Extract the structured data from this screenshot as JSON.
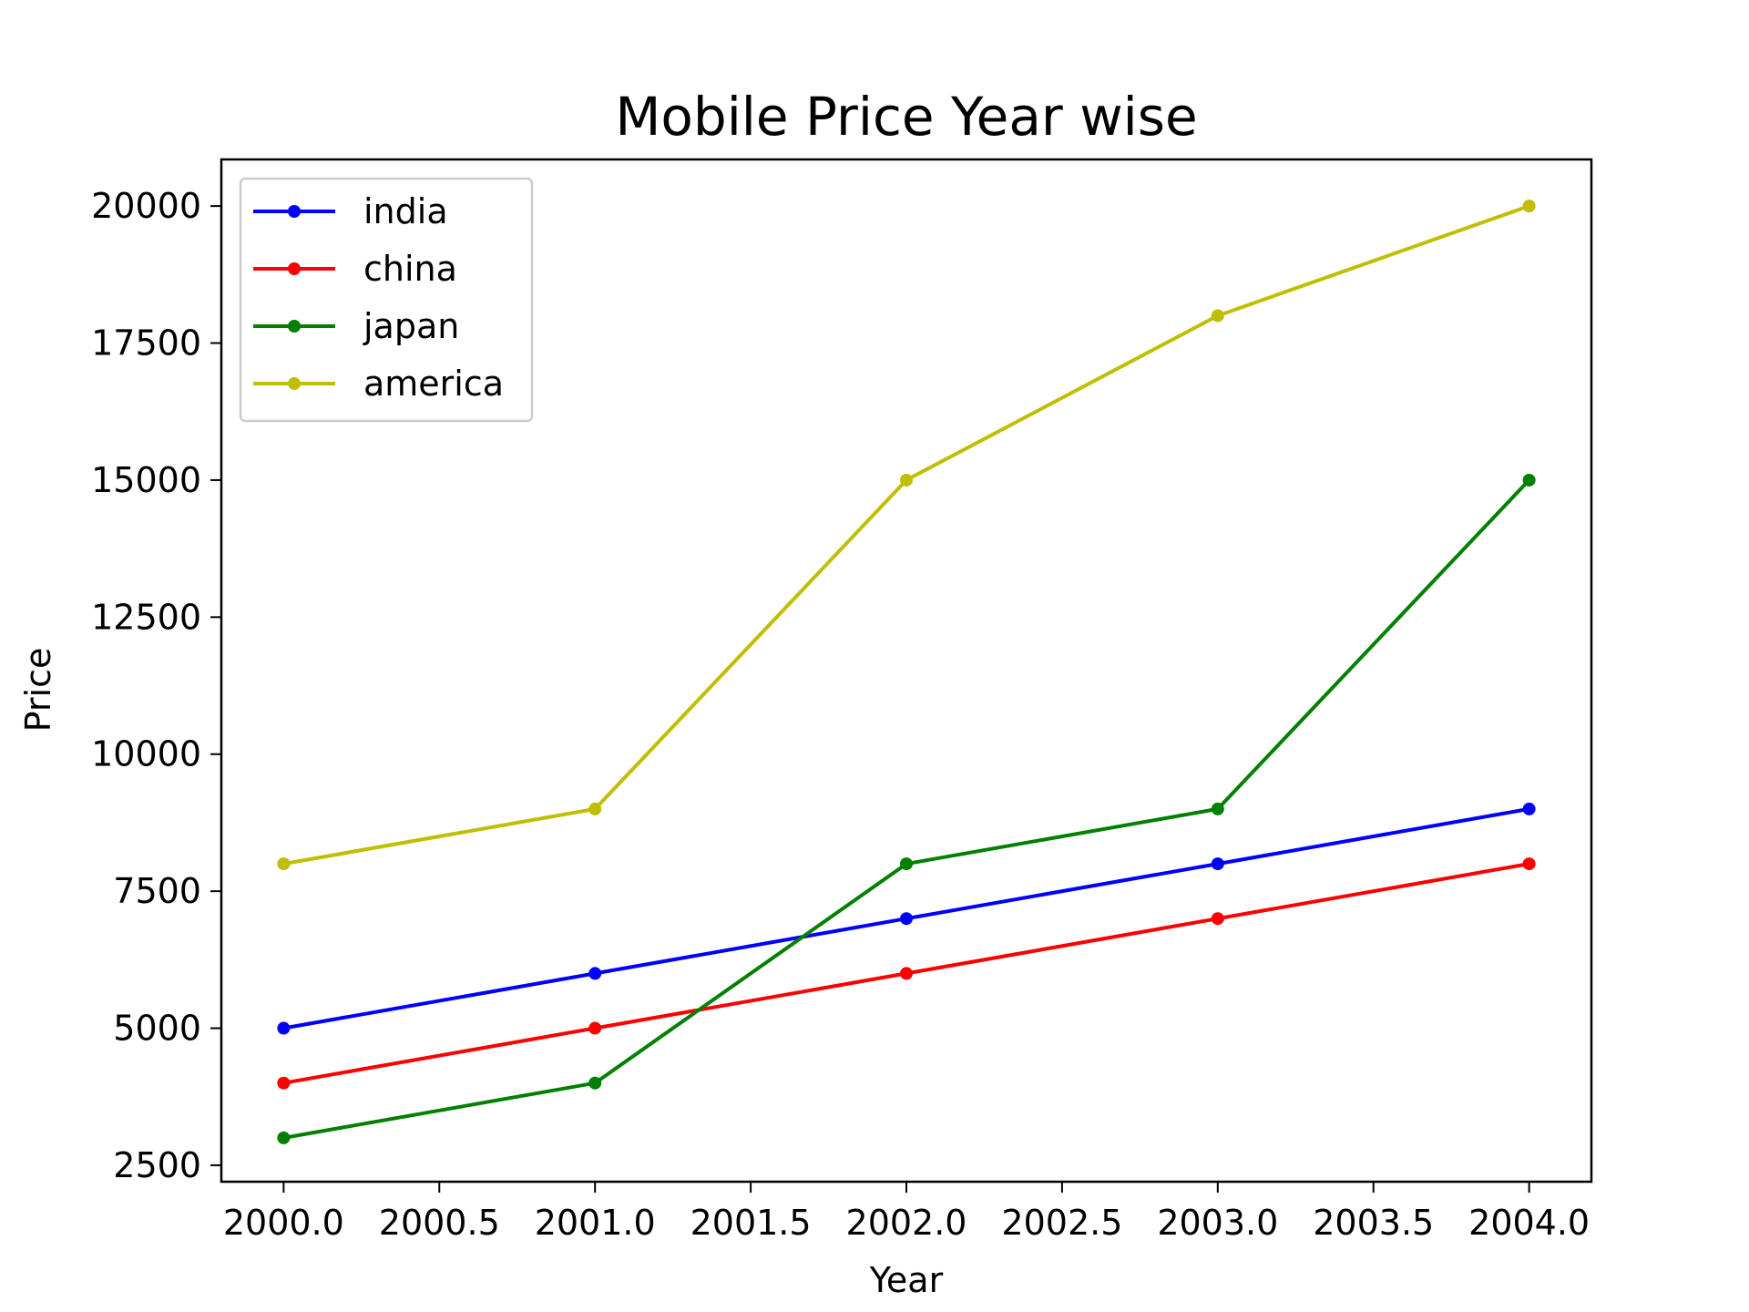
{
  "chart_data": {
    "type": "line",
    "title": "Mobile Price Year wise",
    "xlabel": "Year",
    "ylabel": "Price",
    "x": [
      2000,
      2001,
      2002,
      2003,
      2004
    ],
    "xlim": [
      1999.8,
      2004.2
    ],
    "ylim": [
      2200,
      20850
    ],
    "xticks": [
      "2000.0",
      "2000.5",
      "2001.0",
      "2001.5",
      "2002.0",
      "2002.5",
      "2003.0",
      "2003.5",
      "2004.0"
    ],
    "yticks": [
      "2500",
      "5000",
      "7500",
      "10000",
      "12500",
      "15000",
      "17500",
      "20000"
    ],
    "grid": false,
    "legend_position": "top-left",
    "series": [
      {
        "name": "india",
        "color": "#0000ff",
        "values": [
          5000,
          6000,
          7000,
          8000,
          9000
        ]
      },
      {
        "name": "china",
        "color": "#ff0000",
        "values": [
          4000,
          5000,
          6000,
          7000,
          8000
        ]
      },
      {
        "name": "japan",
        "color": "#008000",
        "values": [
          3000,
          4000,
          8000,
          9000,
          15000
        ]
      },
      {
        "name": "america",
        "color": "#bfbf00",
        "values": [
          8000,
          9000,
          15000,
          18000,
          20000
        ]
      }
    ]
  }
}
